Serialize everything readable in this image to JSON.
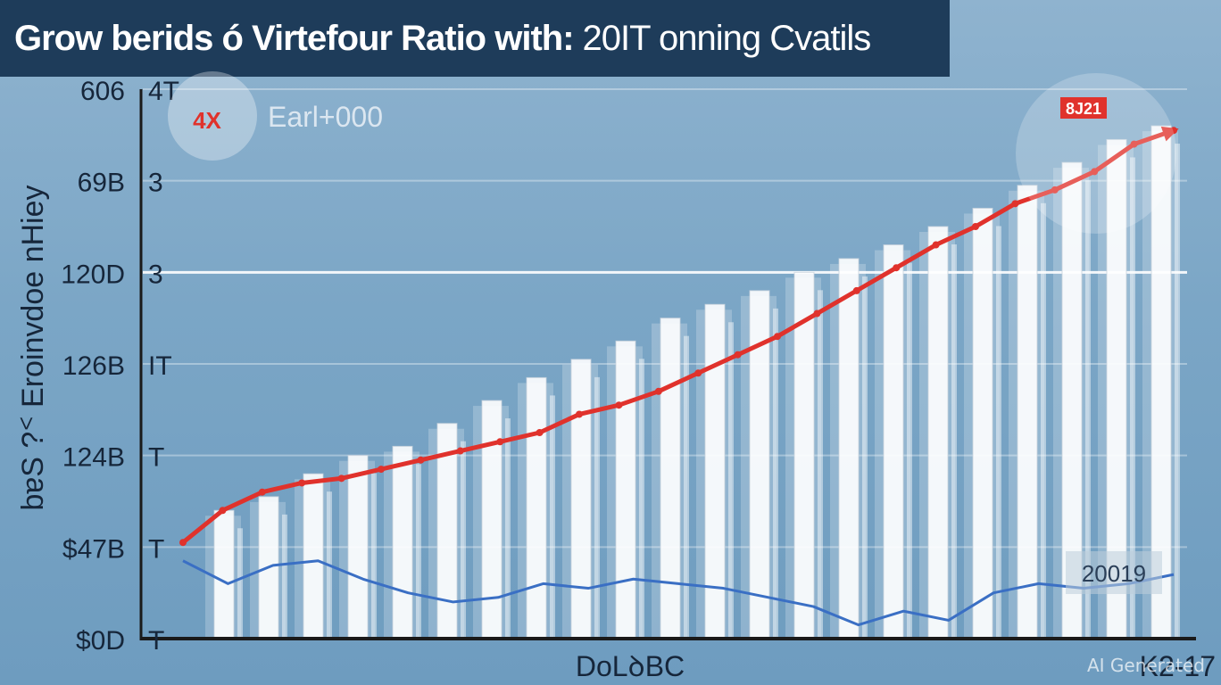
{
  "title": {
    "bold": "Grow berids ó Virtefour Ratio with:",
    "light": "20IT onning Cvatils"
  },
  "watermark": "AI Generated",
  "chart_data": {
    "type": "bar",
    "ylabel": "bɐS ?ᑉ Eroinvdoe nHiey",
    "xlabel": "DoLꝺBC",
    "x_end_label": "K2-17",
    "y_ticks_outer": [
      "$0D",
      "$47B",
      "124B",
      "126B",
      "120D",
      "69B",
      "606"
    ],
    "y_ticks_inner": [
      "T",
      "T",
      "T",
      "IT",
      "3",
      "3",
      "4T"
    ],
    "ylim": [
      0,
      6
    ],
    "annotations": [
      {
        "text": "4X",
        "color": "#e0322c"
      },
      {
        "text": "Earl+000"
      },
      {
        "text": "8J21",
        "color": "#e0322c"
      },
      {
        "text": "20019"
      }
    ],
    "colors": {
      "bars": "#ffffff",
      "red_line": "#e0322c",
      "blue_line": "#3a6fc4"
    },
    "bars": {
      "values": [
        1.4,
        1.55,
        1.8,
        2.0,
        2.1,
        2.35,
        2.6,
        2.85,
        3.05,
        3.25,
        3.5,
        3.65,
        3.8,
        4.0,
        4.15,
        4.3,
        4.5,
        4.7,
        4.95,
        5.2,
        5.45,
        5.6
      ]
    },
    "series": [
      {
        "values": [
          1.05,
          1.4,
          1.6,
          1.7,
          1.75,
          1.85,
          1.95,
          2.05,
          2.15,
          2.25,
          2.45,
          2.55,
          2.7,
          2.9,
          3.1,
          3.3,
          3.55,
          3.8,
          4.05,
          4.3,
          4.5,
          4.75,
          4.9,
          5.1,
          5.4,
          5.55
        ]
      },
      {
        "values": [
          0.85,
          0.6,
          0.8,
          0.85,
          0.65,
          0.5,
          0.4,
          0.45,
          0.6,
          0.55,
          0.65,
          0.6,
          0.55,
          0.45,
          0.35,
          0.15,
          0.3,
          0.2,
          0.5,
          0.6,
          0.55,
          0.6,
          0.7
        ]
      }
    ]
  }
}
